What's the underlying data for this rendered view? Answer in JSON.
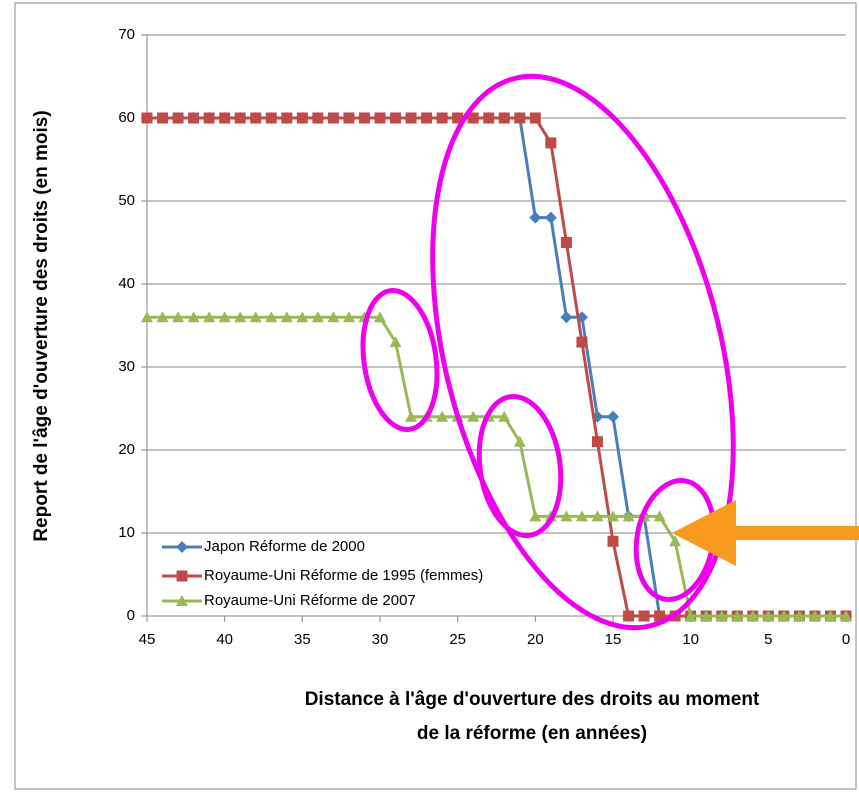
{
  "chart_data": {
    "type": "line",
    "y_label": "Report de l'âge d'ouverture des droits (en mois)",
    "x_label": [
      "Distance à l'âge d'ouverture des droits au moment",
      "de la réforme (en années)"
    ],
    "x": [
      45,
      44,
      43,
      42,
      41,
      40,
      39,
      38,
      37,
      36,
      35,
      34,
      33,
      32,
      31,
      30,
      29,
      28,
      27,
      26,
      25,
      24,
      23,
      22,
      21,
      20,
      19,
      18,
      17,
      16,
      15,
      14,
      13,
      12,
      11,
      10,
      9,
      8,
      7,
      6,
      5,
      4,
      3,
      2,
      1,
      0
    ],
    "xlim": [
      45,
      0
    ],
    "xticks": [
      45,
      40,
      35,
      30,
      25,
      20,
      15,
      10,
      5,
      0
    ],
    "ylim": [
      0,
      70
    ],
    "yticks": [
      0,
      10,
      20,
      30,
      40,
      50,
      60,
      70
    ],
    "grid": true,
    "legend": "lower left",
    "series": [
      {
        "name": "Japon Réforme de 2000",
        "color": "#4a7ebb",
        "marker": "diamond",
        "values": [
          60,
          60,
          60,
          60,
          60,
          60,
          60,
          60,
          60,
          60,
          60,
          60,
          60,
          60,
          60,
          60,
          60,
          60,
          60,
          60,
          60,
          60,
          60,
          60,
          60,
          48,
          48,
          36,
          36,
          24,
          24,
          12,
          12,
          0,
          0,
          0,
          0,
          0,
          0,
          0,
          0,
          0,
          0,
          0,
          0,
          0
        ]
      },
      {
        "name": "Royaume-Uni Réforme de 1995 (femmes)",
        "color": "#be4b48",
        "marker": "square",
        "values": [
          60,
          60,
          60,
          60,
          60,
          60,
          60,
          60,
          60,
          60,
          60,
          60,
          60,
          60,
          60,
          60,
          60,
          60,
          60,
          60,
          60,
          60,
          60,
          60,
          60,
          60,
          57,
          45,
          33,
          21,
          9,
          0,
          0,
          0,
          0,
          0,
          0,
          0,
          0,
          0,
          0,
          0,
          0,
          0,
          0,
          0
        ]
      },
      {
        "name": "Royaume-Uni Réforme de 2007",
        "color": "#98b954",
        "marker": "triangle",
        "values": [
          36,
          36,
          36,
          36,
          36,
          36,
          36,
          36,
          36,
          36,
          36,
          36,
          36,
          36,
          36,
          36,
          33,
          24,
          24,
          24,
          24,
          24,
          24,
          24,
          21,
          12,
          12,
          12,
          12,
          12,
          12,
          12,
          12,
          12,
          9,
          0,
          0,
          0,
          0,
          0,
          0,
          0,
          0,
          0,
          0,
          0
        ]
      }
    ]
  }
}
